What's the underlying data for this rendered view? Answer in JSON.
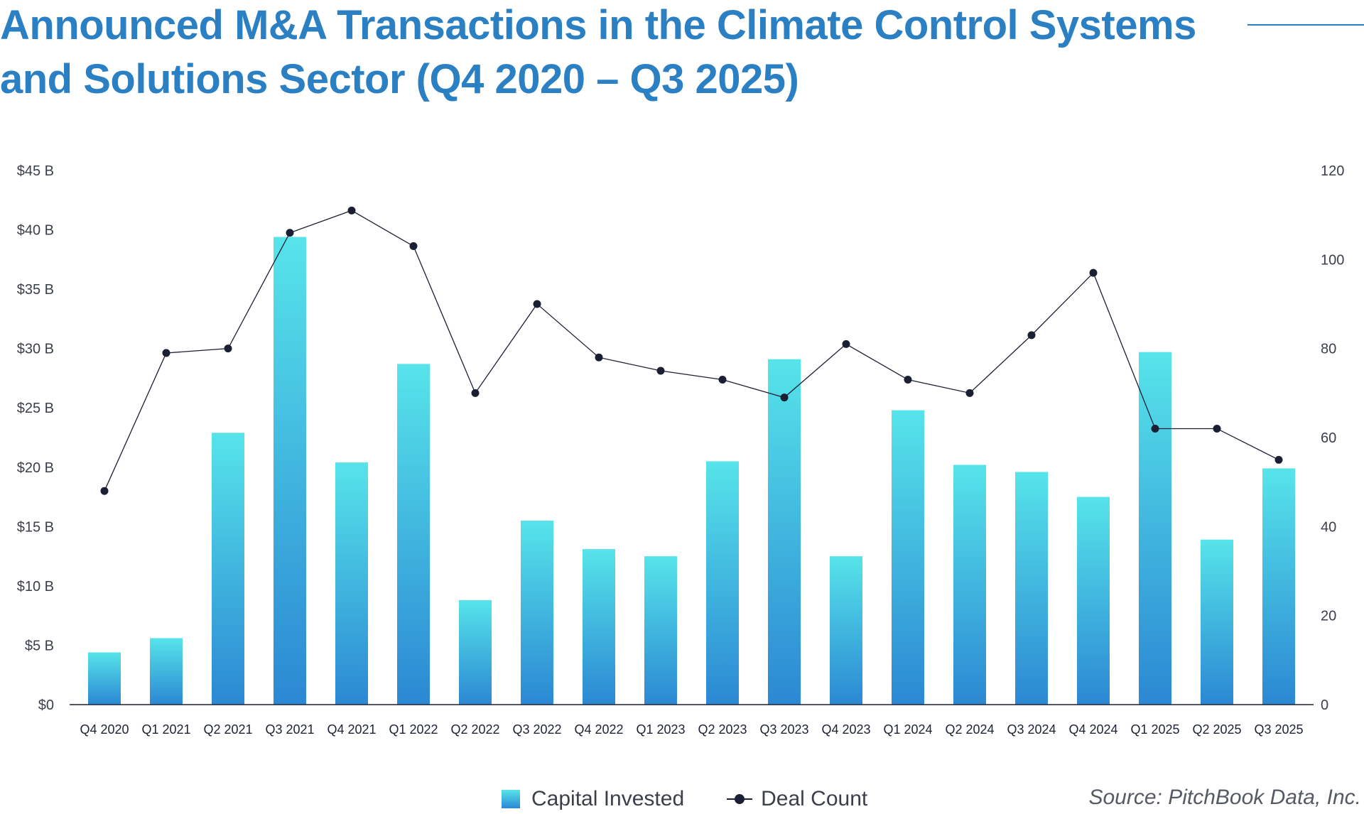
{
  "title": "Announced M&A Transactions in the Climate Control Systems and Solutions Sector (Q4 2020 – Q3 2025)",
  "source": "Source: PitchBook Data, Inc.",
  "chart_data": {
    "type": "bar+line",
    "title": "Announced M&A Transactions in the Climate Control Systems and Solutions Sector (Q4 2020 – Q3 2025)",
    "categories": [
      "Q4 2020",
      "Q1 2021",
      "Q2 2021",
      "Q3 2021",
      "Q4 2021",
      "Q1 2022",
      "Q2 2022",
      "Q3 2022",
      "Q4 2022",
      "Q1 2023",
      "Q2 2023",
      "Q3 2023",
      "Q4 2023",
      "Q1 2024",
      "Q2 2024",
      "Q3 2024",
      "Q4 2024",
      "Q1 2025",
      "Q2 2025",
      "Q3 2025"
    ],
    "series": [
      {
        "name": "Capital Invested",
        "type": "bar",
        "axis": "left",
        "unit": "$B",
        "values": [
          4.4,
          5.6,
          22.9,
          39.4,
          20.4,
          28.7,
          8.8,
          15.5,
          13.1,
          12.5,
          20.5,
          29.1,
          12.5,
          24.8,
          20.2,
          19.6,
          17.5,
          29.7,
          13.9,
          19.9
        ]
      },
      {
        "name": "Deal Count",
        "type": "line",
        "axis": "right",
        "values": [
          48,
          79,
          80,
          106,
          111,
          103,
          70,
          90,
          78,
          75,
          73,
          69,
          81,
          73,
          70,
          83,
          97,
          62,
          62,
          55
        ]
      }
    ],
    "left_axis": {
      "ylim": [
        0,
        45
      ],
      "ticks": [
        "$0",
        "$5 B",
        "$10 B",
        "$15 B",
        "$20 B",
        "$25 B",
        "$30 B",
        "$35 B",
        "$40 B",
        "$45 B"
      ]
    },
    "right_axis": {
      "ylim": [
        0,
        120
      ],
      "ticks": [
        "0",
        "20",
        "40",
        "60",
        "80",
        "100",
        "120"
      ]
    },
    "grid": false,
    "legend": "bottom-center",
    "colors": {
      "bar_top": "#56e4ea",
      "bar_bottom": "#2b88d3",
      "line": "#1b1f33",
      "title": "#2b7fc3"
    }
  }
}
